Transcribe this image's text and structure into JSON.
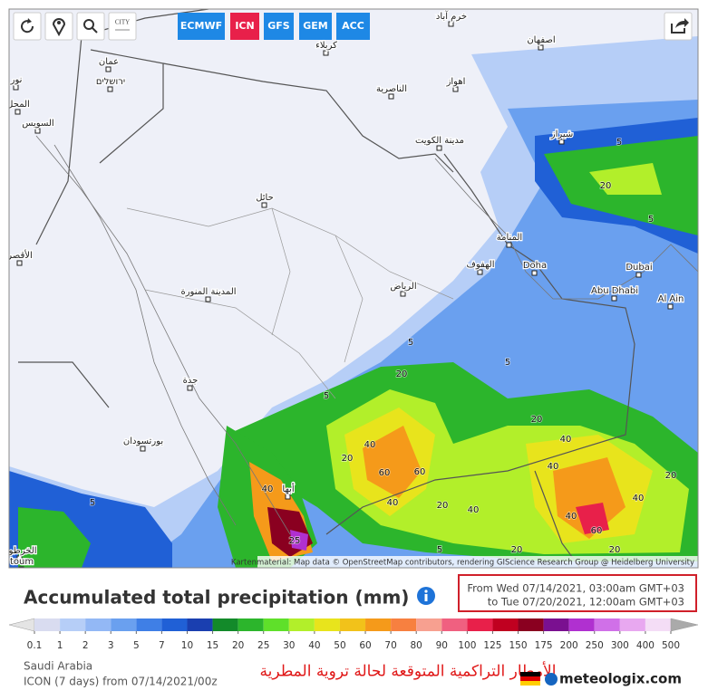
{
  "toolbar": {
    "city_button": "CITY",
    "models": [
      "ECMWF",
      "ICN",
      "GFS",
      "GEM",
      "ACC"
    ],
    "active_model": "ICN",
    "model_color": "#1e88e5",
    "active_color": "#e8204a"
  },
  "map": {
    "places": [
      "خرم آباد",
      "اصفهان",
      "عمان",
      "ירושלים",
      "المحل",
      "السويس",
      "كربلاء",
      "الناصرية",
      "اهواز",
      "مدينة الكويت",
      "شيراز",
      "حائل",
      "المنامة",
      "الهفوف",
      "Doha",
      "Dubai",
      "Abu Dhabi",
      "Al Ain",
      "المدينة المنورة",
      "الرياض",
      "جدة",
      "بورتسودان",
      "أبها",
      "الخرطوم",
      "toum",
      "نور",
      "الأقصر"
    ],
    "contour_labels": [
      5,
      5,
      5,
      5,
      5,
      5,
      5,
      20,
      20,
      20,
      20,
      20,
      20,
      20,
      20,
      40,
      40,
      40,
      40,
      40,
      40,
      40,
      40,
      60,
      60,
      60,
      25
    ],
    "attribution": "Kartenmaterial: Map data © OpenStreetMap contributors, rendering GIScience Research Group @ Heidelberg University"
  },
  "title": "Accumulated total precipitation (mm)",
  "period": {
    "from": "From Wed 07/14/2021, 03:00am GMT+03",
    "to": "to Tue 07/20/2021, 12:00am GMT+03"
  },
  "legend": {
    "values": [
      0.1,
      1,
      2,
      3,
      5,
      7,
      10,
      15,
      20,
      25,
      30,
      40,
      50,
      60,
      70,
      80,
      90,
      100,
      125,
      150,
      175,
      200,
      250,
      300,
      400,
      500
    ],
    "colors": [
      "#d9dcf0",
      "#b6cef7",
      "#93b8f5",
      "#6aa0ef",
      "#3f7fe6",
      "#2060d6",
      "#1a3fb0",
      "#138a2a",
      "#2cb52c",
      "#5fe02a",
      "#b2ef2a",
      "#e8e41c",
      "#f2c21a",
      "#f59a1a",
      "#f78040",
      "#f7a090",
      "#f06080",
      "#e8204a",
      "#c00020",
      "#8a0020",
      "#7a1090",
      "#b030d0",
      "#d070e8",
      "#e8a8f0",
      "#f4ddf6"
    ],
    "under_color": "#e4e4e4",
    "over_color": "#aaaaaa"
  },
  "footer": {
    "region": "Saudi Arabia",
    "run": "ICON (7 days) from 07/14/2021/00z",
    "note": "الأمطار التراكمية المتوقعة لحالة تروية المطرية",
    "brand": "meteologix.com"
  }
}
